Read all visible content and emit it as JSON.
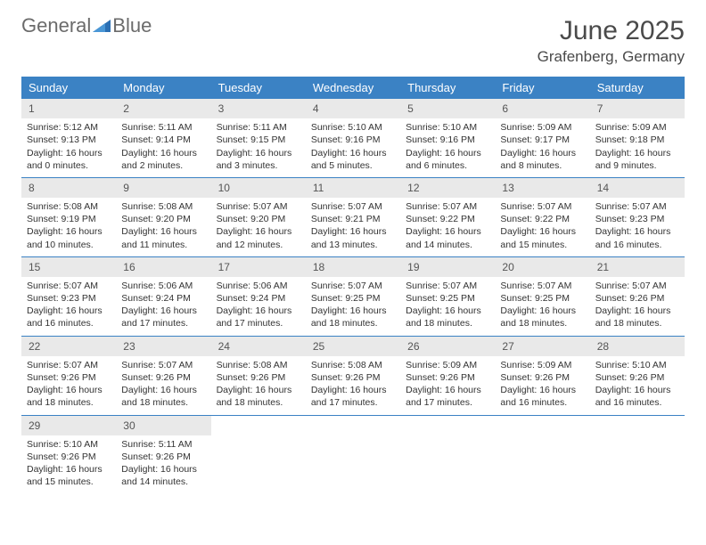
{
  "logo": {
    "text1": "General",
    "text2": "Blue"
  },
  "header": {
    "month": "June 2025",
    "location": "Grafenberg, Germany"
  },
  "colors": {
    "header_bg": "#3b82c4",
    "header_text": "#ffffff",
    "daynum_bg": "#e9e9e9",
    "border": "#3b82c4",
    "logo_gray": "#6b6b6b",
    "logo_blue": "#2b6fb3"
  },
  "day_names": [
    "Sunday",
    "Monday",
    "Tuesday",
    "Wednesday",
    "Thursday",
    "Friday",
    "Saturday"
  ],
  "weeks": [
    [
      {
        "n": "1",
        "sr": "5:12 AM",
        "ss": "9:13 PM",
        "dh": "16",
        "dm": "0"
      },
      {
        "n": "2",
        "sr": "5:11 AM",
        "ss": "9:14 PM",
        "dh": "16",
        "dm": "2"
      },
      {
        "n": "3",
        "sr": "5:11 AM",
        "ss": "9:15 PM",
        "dh": "16",
        "dm": "3"
      },
      {
        "n": "4",
        "sr": "5:10 AM",
        "ss": "9:16 PM",
        "dh": "16",
        "dm": "5"
      },
      {
        "n": "5",
        "sr": "5:10 AM",
        "ss": "9:16 PM",
        "dh": "16",
        "dm": "6"
      },
      {
        "n": "6",
        "sr": "5:09 AM",
        "ss": "9:17 PM",
        "dh": "16",
        "dm": "8"
      },
      {
        "n": "7",
        "sr": "5:09 AM",
        "ss": "9:18 PM",
        "dh": "16",
        "dm": "9"
      }
    ],
    [
      {
        "n": "8",
        "sr": "5:08 AM",
        "ss": "9:19 PM",
        "dh": "16",
        "dm": "10"
      },
      {
        "n": "9",
        "sr": "5:08 AM",
        "ss": "9:20 PM",
        "dh": "16",
        "dm": "11"
      },
      {
        "n": "10",
        "sr": "5:07 AM",
        "ss": "9:20 PM",
        "dh": "16",
        "dm": "12"
      },
      {
        "n": "11",
        "sr": "5:07 AM",
        "ss": "9:21 PM",
        "dh": "16",
        "dm": "13"
      },
      {
        "n": "12",
        "sr": "5:07 AM",
        "ss": "9:22 PM",
        "dh": "16",
        "dm": "14"
      },
      {
        "n": "13",
        "sr": "5:07 AM",
        "ss": "9:22 PM",
        "dh": "16",
        "dm": "15"
      },
      {
        "n": "14",
        "sr": "5:07 AM",
        "ss": "9:23 PM",
        "dh": "16",
        "dm": "16"
      }
    ],
    [
      {
        "n": "15",
        "sr": "5:07 AM",
        "ss": "9:23 PM",
        "dh": "16",
        "dm": "16"
      },
      {
        "n": "16",
        "sr": "5:06 AM",
        "ss": "9:24 PM",
        "dh": "16",
        "dm": "17"
      },
      {
        "n": "17",
        "sr": "5:06 AM",
        "ss": "9:24 PM",
        "dh": "16",
        "dm": "17"
      },
      {
        "n": "18",
        "sr": "5:07 AM",
        "ss": "9:25 PM",
        "dh": "16",
        "dm": "18"
      },
      {
        "n": "19",
        "sr": "5:07 AM",
        "ss": "9:25 PM",
        "dh": "16",
        "dm": "18"
      },
      {
        "n": "20",
        "sr": "5:07 AM",
        "ss": "9:25 PM",
        "dh": "16",
        "dm": "18"
      },
      {
        "n": "21",
        "sr": "5:07 AM",
        "ss": "9:26 PM",
        "dh": "16",
        "dm": "18"
      }
    ],
    [
      {
        "n": "22",
        "sr": "5:07 AM",
        "ss": "9:26 PM",
        "dh": "16",
        "dm": "18"
      },
      {
        "n": "23",
        "sr": "5:07 AM",
        "ss": "9:26 PM",
        "dh": "16",
        "dm": "18"
      },
      {
        "n": "24",
        "sr": "5:08 AM",
        "ss": "9:26 PM",
        "dh": "16",
        "dm": "18"
      },
      {
        "n": "25",
        "sr": "5:08 AM",
        "ss": "9:26 PM",
        "dh": "16",
        "dm": "17"
      },
      {
        "n": "26",
        "sr": "5:09 AM",
        "ss": "9:26 PM",
        "dh": "16",
        "dm": "17"
      },
      {
        "n": "27",
        "sr": "5:09 AM",
        "ss": "9:26 PM",
        "dh": "16",
        "dm": "16"
      },
      {
        "n": "28",
        "sr": "5:10 AM",
        "ss": "9:26 PM",
        "dh": "16",
        "dm": "16"
      }
    ],
    [
      {
        "n": "29",
        "sr": "5:10 AM",
        "ss": "9:26 PM",
        "dh": "16",
        "dm": "15"
      },
      {
        "n": "30",
        "sr": "5:11 AM",
        "ss": "9:26 PM",
        "dh": "16",
        "dm": "14"
      },
      null,
      null,
      null,
      null,
      null
    ]
  ],
  "labels": {
    "sunrise": "Sunrise:",
    "sunset": "Sunset:",
    "daylight": "Daylight:",
    "hours": "hours",
    "and": "and",
    "minutes": "minutes."
  }
}
